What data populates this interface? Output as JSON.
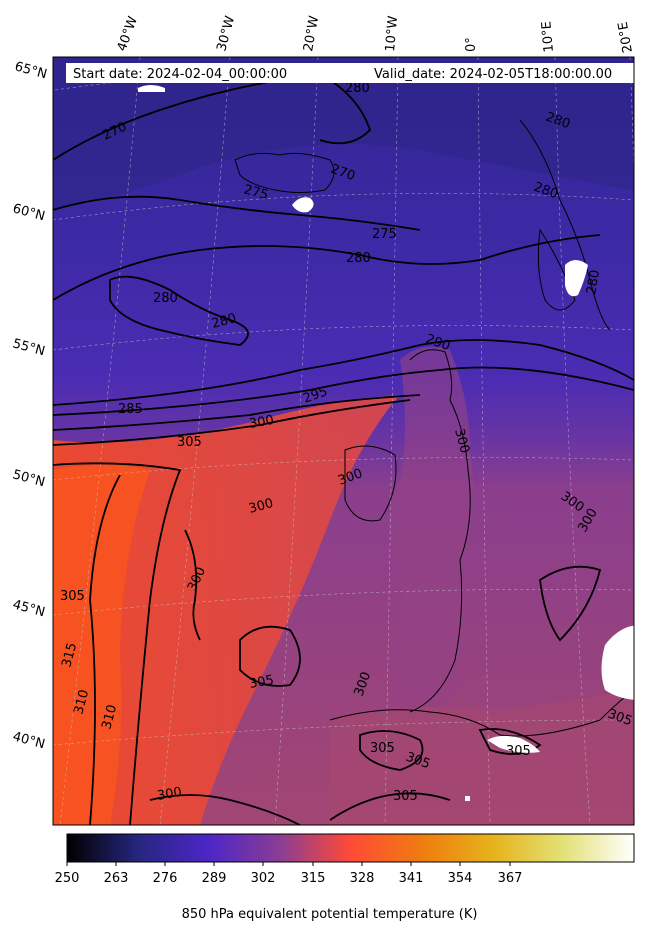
{
  "header": {
    "start_date": "Start date: 2024-02-04_00:00:00",
    "valid_date": "Valid_date: 2024-02-05T18:00:00.00"
  },
  "map": {
    "projection": "conic",
    "field": "850 hPa equivalent potential temperature",
    "colormap": "CMRmap",
    "longitude_labels": [
      "40°W",
      "30°W",
      "20°W",
      "10°W",
      "0°",
      "10°E",
      "20°E"
    ],
    "latitude_labels": [
      "65°N",
      "60°N",
      "55°N",
      "50°N",
      "45°N",
      "40°N"
    ],
    "contour_labels": [
      "280",
      "270",
      "280",
      "280",
      "270",
      "275",
      "275",
      "280",
      "280",
      "280",
      "280",
      "290",
      "285",
      "295",
      "300",
      "305",
      "300",
      "300",
      "300",
      "300",
      "300",
      "315",
      "310",
      "310",
      "305",
      "300",
      "305",
      "305",
      "305",
      "305",
      "300"
    ]
  },
  "colorbar": {
    "label": "850 hPa equivalent potential temperature (K)",
    "ticks": [
      "250",
      "263",
      "276",
      "289",
      "302",
      "315",
      "328",
      "341",
      "354",
      "367"
    ]
  }
}
